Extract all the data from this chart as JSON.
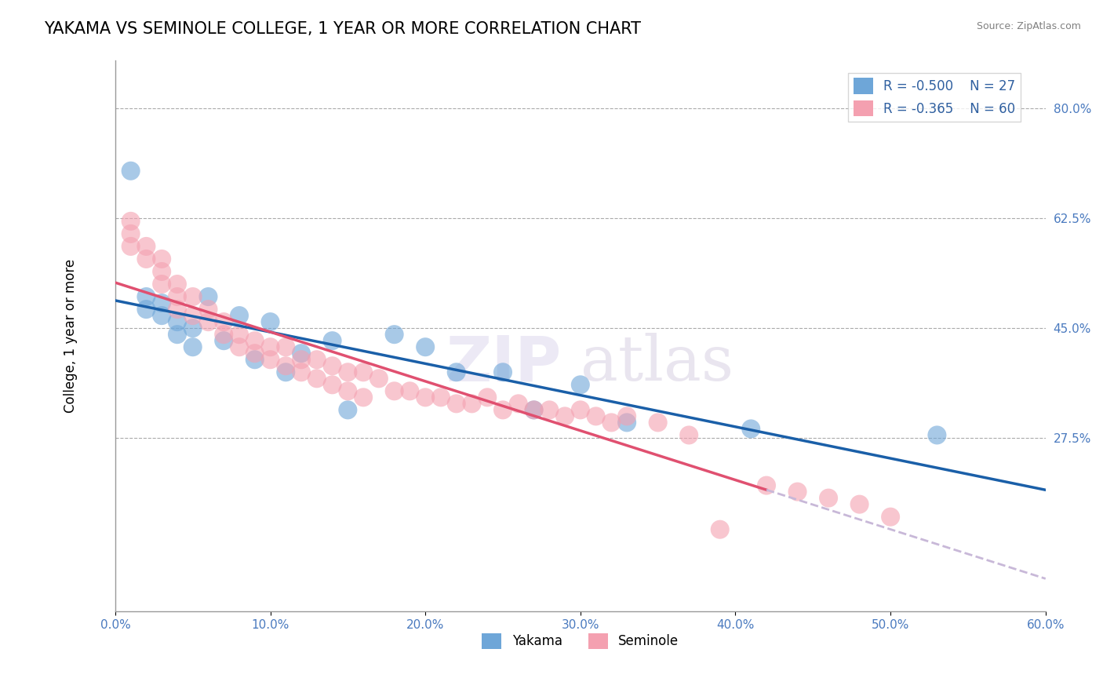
{
  "title": "YAKAMA VS SEMINOLE COLLEGE, 1 YEAR OR MORE CORRELATION CHART",
  "source_text": "Source: ZipAtlas.com",
  "xlabel": "",
  "ylabel": "College, 1 year or more",
  "xlim": [
    0.0,
    0.6
  ],
  "ylim": [
    0.0,
    0.875
  ],
  "xticks": [
    0.0,
    0.1,
    0.2,
    0.3,
    0.4,
    0.5,
    0.6
  ],
  "xticklabels": [
    "0.0%",
    "10.0%",
    "20.0%",
    "30.0%",
    "40.0%",
    "50.0%",
    "60.0%"
  ],
  "yticks_right": [
    0.275,
    0.45,
    0.625,
    0.8
  ],
  "yticklabels_right": [
    "27.5%",
    "45.0%",
    "62.5%",
    "80.0%"
  ],
  "blue_color": "#6ea6d8",
  "pink_color": "#f4a0b0",
  "blue_line_color": "#1a5fa8",
  "pink_line_color": "#e05070",
  "dashed_line_color": "#c8b8d8",
  "legend_R_blue": "R = -0.500",
  "legend_N_blue": "N = 27",
  "legend_R_pink": "R = -0.365",
  "legend_N_pink": "N = 60",
  "watermark_zip": "ZIP",
  "watermark_atlas": "atlas",
  "title_fontsize": 15,
  "axis_label_fontsize": 12,
  "tick_fontsize": 11,
  "legend_fontsize": 12,
  "blue_scatter_x": [
    0.01,
    0.02,
    0.02,
    0.03,
    0.03,
    0.04,
    0.04,
    0.05,
    0.05,
    0.06,
    0.07,
    0.08,
    0.09,
    0.1,
    0.11,
    0.12,
    0.14,
    0.15,
    0.18,
    0.2,
    0.22,
    0.25,
    0.27,
    0.3,
    0.33,
    0.41,
    0.53
  ],
  "blue_scatter_y": [
    0.7,
    0.5,
    0.48,
    0.47,
    0.49,
    0.46,
    0.44,
    0.45,
    0.42,
    0.5,
    0.43,
    0.47,
    0.4,
    0.46,
    0.38,
    0.41,
    0.43,
    0.32,
    0.44,
    0.42,
    0.38,
    0.38,
    0.32,
    0.36,
    0.3,
    0.29,
    0.28
  ],
  "pink_scatter_x": [
    0.01,
    0.01,
    0.01,
    0.02,
    0.02,
    0.03,
    0.03,
    0.03,
    0.04,
    0.04,
    0.04,
    0.05,
    0.05,
    0.06,
    0.06,
    0.07,
    0.07,
    0.08,
    0.08,
    0.09,
    0.09,
    0.1,
    0.1,
    0.11,
    0.11,
    0.12,
    0.12,
    0.13,
    0.13,
    0.14,
    0.14,
    0.15,
    0.15,
    0.16,
    0.16,
    0.17,
    0.18,
    0.19,
    0.2,
    0.21,
    0.22,
    0.23,
    0.24,
    0.25,
    0.26,
    0.27,
    0.28,
    0.29,
    0.3,
    0.31,
    0.32,
    0.33,
    0.35,
    0.37,
    0.39,
    0.42,
    0.44,
    0.46,
    0.48,
    0.5
  ],
  "pink_scatter_y": [
    0.62,
    0.6,
    0.58,
    0.58,
    0.56,
    0.56,
    0.54,
    0.52,
    0.52,
    0.5,
    0.48,
    0.5,
    0.47,
    0.48,
    0.46,
    0.46,
    0.44,
    0.44,
    0.42,
    0.43,
    0.41,
    0.42,
    0.4,
    0.42,
    0.39,
    0.4,
    0.38,
    0.4,
    0.37,
    0.39,
    0.36,
    0.38,
    0.35,
    0.38,
    0.34,
    0.37,
    0.35,
    0.35,
    0.34,
    0.34,
    0.33,
    0.33,
    0.34,
    0.32,
    0.33,
    0.32,
    0.32,
    0.31,
    0.32,
    0.31,
    0.3,
    0.31,
    0.3,
    0.28,
    0.13,
    0.2,
    0.19,
    0.18,
    0.17,
    0.15
  ]
}
